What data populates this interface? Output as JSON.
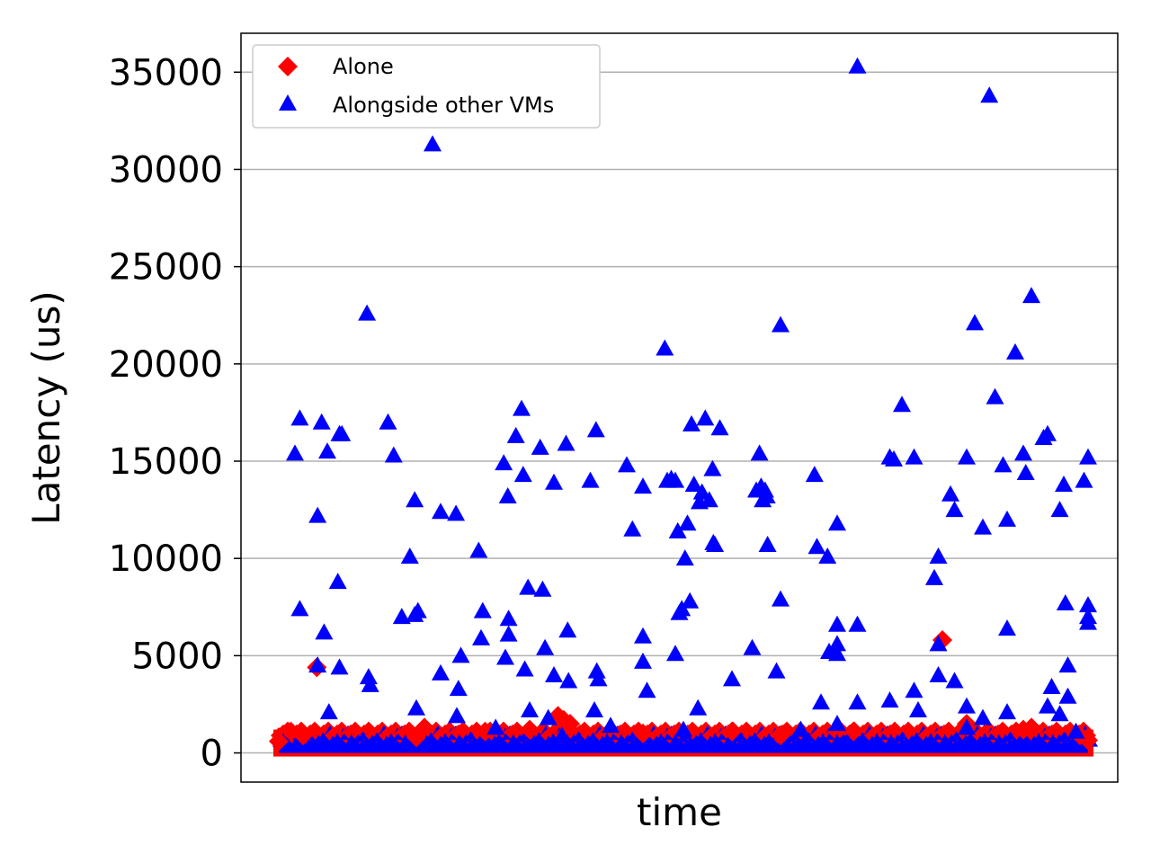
{
  "chart_data": {
    "type": "scatter",
    "title": "",
    "xlabel": "time",
    "ylabel": "Latency (us)",
    "ylim": [
      -1500,
      37000
    ],
    "yticks": [
      0,
      5000,
      10000,
      15000,
      20000,
      25000,
      30000,
      35000
    ],
    "ytick_labels": [
      "0",
      "5000",
      "10000",
      "15000",
      "20000",
      "25000",
      "30000",
      "35000"
    ],
    "xticks_visible": false,
    "grid": "y-major",
    "legend": "top-left",
    "baseline_band": {
      "from_x": 0.0,
      "to_x": 1.0,
      "y_low": 0,
      "y_high": 1200
    },
    "series": [
      {
        "name": "Alone",
        "marker": "diamond",
        "color": "#ff0000",
        "points": [
          [
            0.0,
            600
          ],
          [
            0.015,
            1100
          ],
          [
            0.047,
            4400
          ],
          [
            0.03,
            900
          ],
          [
            0.18,
            1300
          ],
          [
            0.17,
            800
          ],
          [
            0.255,
            1100
          ],
          [
            0.345,
            1900
          ],
          [
            0.352,
            1700
          ],
          [
            0.36,
            1500
          ],
          [
            0.31,
            1200
          ],
          [
            0.45,
            1000
          ],
          [
            0.56,
            1100
          ],
          [
            0.62,
            900
          ],
          [
            0.71,
            1100
          ],
          [
            0.82,
            5800
          ],
          [
            0.85,
            1500
          ],
          [
            0.92,
            1200
          ],
          [
            0.93,
            1300
          ],
          [
            1.0,
            650
          ],
          [
            0.99,
            900
          ]
        ]
      },
      {
        "name": "Alongside other VMs",
        "marker": "triangle",
        "color": "#0000ff",
        "points": [
          [
            0.02,
            15400
          ],
          [
            0.026,
            17200
          ],
          [
            0.026,
            7400
          ],
          [
            0.048,
            4500
          ],
          [
            0.048,
            12200
          ],
          [
            0.053,
            17000
          ],
          [
            0.056,
            6200
          ],
          [
            0.06,
            15500
          ],
          [
            0.062,
            2100
          ],
          [
            0.075,
            16400
          ],
          [
            0.078,
            16400
          ],
          [
            0.073,
            8800
          ],
          [
            0.075,
            4400
          ],
          [
            0.109,
            22600
          ],
          [
            0.111,
            3900
          ],
          [
            0.113,
            3500
          ],
          [
            0.135,
            17000
          ],
          [
            0.142,
            15300
          ],
          [
            0.152,
            7000
          ],
          [
            0.162,
            10100
          ],
          [
            0.168,
            13000
          ],
          [
            0.168,
            7100
          ],
          [
            0.172,
            7300
          ],
          [
            0.17,
            2300
          ],
          [
            0.19,
            31300
          ],
          [
            0.2,
            12400
          ],
          [
            0.2,
            4100
          ],
          [
            0.219,
            12300
          ],
          [
            0.22,
            1900
          ],
          [
            0.222,
            3300
          ],
          [
            0.225,
            5000
          ],
          [
            0.247,
            10400
          ],
          [
            0.25,
            5900
          ],
          [
            0.252,
            7300
          ],
          [
            0.268,
            1300
          ],
          [
            0.278,
            14900
          ],
          [
            0.28,
            4900
          ],
          [
            0.283,
            13200
          ],
          [
            0.284,
            6100
          ],
          [
            0.284,
            6900
          ],
          [
            0.293,
            16300
          ],
          [
            0.3,
            17700
          ],
          [
            0.302,
            14300
          ],
          [
            0.304,
            4300
          ],
          [
            0.308,
            8500
          ],
          [
            0.31,
            2200
          ],
          [
            0.323,
            15700
          ],
          [
            0.326,
            8400
          ],
          [
            0.329,
            5400
          ],
          [
            0.333,
            1800
          ],
          [
            0.34,
            13900
          ],
          [
            0.34,
            4000
          ],
          [
            0.355,
            15900
          ],
          [
            0.357,
            6300
          ],
          [
            0.358,
            3700
          ],
          [
            0.385,
            14000
          ],
          [
            0.39,
            2200
          ],
          [
            0.392,
            16600
          ],
          [
            0.393,
            4200
          ],
          [
            0.395,
            3800
          ],
          [
            0.41,
            1400
          ],
          [
            0.43,
            14800
          ],
          [
            0.437,
            11500
          ],
          [
            0.45,
            13700
          ],
          [
            0.45,
            6000
          ],
          [
            0.45,
            4700
          ],
          [
            0.455,
            3200
          ],
          [
            0.477,
            20800
          ],
          [
            0.48,
            14000
          ],
          [
            0.485,
            14100
          ],
          [
            0.49,
            14000
          ],
          [
            0.49,
            5100
          ],
          [
            0.493,
            11400
          ],
          [
            0.495,
            7200
          ],
          [
            0.498,
            7400
          ],
          [
            0.502,
            10000
          ],
          [
            0.505,
            11800
          ],
          [
            0.508,
            7800
          ],
          [
            0.51,
            16900
          ],
          [
            0.513,
            13800
          ],
          [
            0.518,
            2300
          ],
          [
            0.52,
            12900
          ],
          [
            0.523,
            13400
          ],
          [
            0.527,
            17200
          ],
          [
            0.532,
            13000
          ],
          [
            0.536,
            14600
          ],
          [
            0.537,
            10800
          ],
          [
            0.539,
            10700
          ],
          [
            0.545,
            16700
          ],
          [
            0.56,
            3800
          ],
          [
            0.585,
            5400
          ],
          [
            0.59,
            13500
          ],
          [
            0.594,
            15400
          ],
          [
            0.596,
            13700
          ],
          [
            0.598,
            13000
          ],
          [
            0.601,
            13500
          ],
          [
            0.603,
            13200
          ],
          [
            0.604,
            10700
          ],
          [
            0.615,
            4200
          ],
          [
            0.62,
            22000
          ],
          [
            0.62,
            7900
          ],
          [
            0.662,
            14300
          ],
          [
            0.665,
            10600
          ],
          [
            0.67,
            2600
          ],
          [
            0.678,
            10100
          ],
          [
            0.68,
            5200
          ],
          [
            0.69,
            11800
          ],
          [
            0.69,
            6600
          ],
          [
            0.69,
            5600
          ],
          [
            0.69,
            5100
          ],
          [
            0.69,
            1500
          ],
          [
            0.695,
            400
          ],
          [
            0.703,
            500
          ],
          [
            0.715,
            35300
          ],
          [
            0.715,
            6600
          ],
          [
            0.715,
            2600
          ],
          [
            0.755,
            15200
          ],
          [
            0.755,
            2700
          ],
          [
            0.76,
            15100
          ],
          [
            0.77,
            17900
          ],
          [
            0.785,
            15200
          ],
          [
            0.785,
            3200
          ],
          [
            0.79,
            2200
          ],
          [
            0.81,
            9000
          ],
          [
            0.815,
            10100
          ],
          [
            0.815,
            5600
          ],
          [
            0.815,
            4000
          ],
          [
            0.83,
            13300
          ],
          [
            0.835,
            12500
          ],
          [
            0.835,
            3700
          ],
          [
            0.85,
            15200
          ],
          [
            0.85,
            2400
          ],
          [
            0.85,
            1300
          ],
          [
            0.86,
            22100
          ],
          [
            0.87,
            11600
          ],
          [
            0.87,
            1800
          ],
          [
            0.878,
            33800
          ],
          [
            0.885,
            18300
          ],
          [
            0.895,
            14800
          ],
          [
            0.9,
            12000
          ],
          [
            0.9,
            6400
          ],
          [
            0.9,
            2100
          ],
          [
            0.91,
            20600
          ],
          [
            0.92,
            15400
          ],
          [
            0.923,
            14400
          ],
          [
            0.93,
            23500
          ],
          [
            0.945,
            16200
          ],
          [
            0.95,
            16400
          ],
          [
            0.95,
            2400
          ],
          [
            0.955,
            3400
          ],
          [
            0.965,
            12500
          ],
          [
            0.965,
            2000
          ],
          [
            0.97,
            13800
          ],
          [
            0.972,
            7700
          ],
          [
            0.975,
            4500
          ],
          [
            0.975,
            2900
          ],
          [
            0.985,
            1100
          ],
          [
            0.995,
            14000
          ],
          [
            1.0,
            7600
          ],
          [
            1.0,
            6700
          ],
          [
            1.0,
            15200
          ],
          [
            1.0,
            7000
          ],
          [
            0.645,
            1200
          ],
          [
            0.5,
            1200
          ],
          [
            0.35,
            900
          ]
        ]
      }
    ]
  }
}
